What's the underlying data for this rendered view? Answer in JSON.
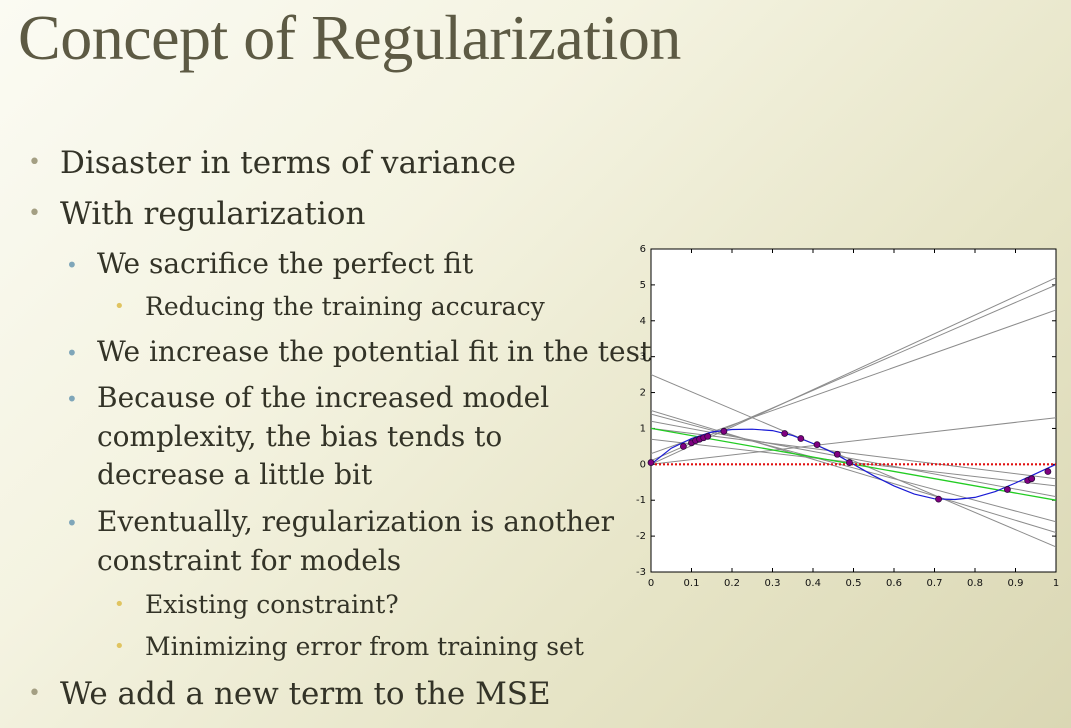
{
  "slide": {
    "title": "Concept of Regularization",
    "bullets": [
      {
        "level": 1,
        "text": "Disaster in terms of variance"
      },
      {
        "level": 1,
        "text": "With regularization"
      },
      {
        "level": 2,
        "text": "We sacrifice the perfect fit"
      },
      {
        "level": 3,
        "text": "Reducing the training accuracy"
      },
      {
        "level": 2,
        "text": "We increase the potential fit in the test"
      },
      {
        "level": 2,
        "lines": [
          "Because of the increased model",
          "complexity, the bias tends to",
          "decrease a little bit"
        ]
      },
      {
        "level": 2,
        "lines": [
          "Eventually, regularization is another",
          "constraint for models"
        ]
      },
      {
        "level": 3,
        "text": "Existing constraint?"
      },
      {
        "level": 3,
        "text": "Minimizing error from training set"
      },
      {
        "level": 1,
        "text": "We add a new term to the MSE"
      }
    ]
  },
  "chart_data": {
    "type": "line",
    "xlim": [
      0,
      1
    ],
    "ylim": [
      -3,
      6
    ],
    "x_ticks": [
      "0",
      "0.1",
      "0.2",
      "0.3",
      "0.4",
      "0.5",
      "0.6",
      "0.7",
      "0.8",
      "0.9",
      "1"
    ],
    "y_ticks": [
      "6",
      "5",
      "4",
      "3",
      "2",
      "1",
      "0",
      "-1",
      "-2",
      "-3"
    ],
    "grid": false,
    "colors": {
      "fits": "#8c8c8c",
      "true_curve": "#1a1ad6",
      "regularized": "#22cc22",
      "zero_line": "#e01010",
      "points": "#800080"
    },
    "series": [
      {
        "kind": "fit",
        "x": [
          0,
          1
        ],
        "y": [
          0.0,
          5.2
        ]
      },
      {
        "kind": "fit",
        "x": [
          0,
          1
        ],
        "y": [
          0.1,
          5.0
        ]
      },
      {
        "kind": "fit",
        "x": [
          0,
          1
        ],
        "y": [
          0.3,
          4.3
        ]
      },
      {
        "kind": "fit",
        "x": [
          0,
          1
        ],
        "y": [
          0.0,
          1.3
        ]
      },
      {
        "kind": "fit",
        "x": [
          0,
          1
        ],
        "y": [
          2.5,
          -2.3
        ]
      },
      {
        "kind": "fit",
        "x": [
          0,
          1
        ],
        "y": [
          1.5,
          -1.9
        ]
      },
      {
        "kind": "fit",
        "x": [
          0,
          1
        ],
        "y": [
          1.4,
          -1.6
        ]
      },
      {
        "kind": "fit",
        "x": [
          0,
          1
        ],
        "y": [
          1.2,
          -0.9
        ]
      },
      {
        "kind": "fit",
        "x": [
          0,
          1
        ],
        "y": [
          1.0,
          -0.4
        ]
      },
      {
        "kind": "fit",
        "x": [
          0,
          1
        ],
        "y": [
          0.7,
          -0.6
        ]
      },
      {
        "kind": "regularized",
        "x": [
          0,
          1
        ],
        "y": [
          1.0,
          -1.0
        ]
      },
      {
        "kind": "zero",
        "x": [
          0,
          1
        ],
        "y": [
          0,
          0
        ]
      },
      {
        "kind": "curve",
        "x": [
          0,
          0.05,
          0.1,
          0.15,
          0.2,
          0.25,
          0.3,
          0.35,
          0.4,
          0.45,
          0.5,
          0.55,
          0.6,
          0.65,
          0.7,
          0.75,
          0.8,
          0.85,
          0.9,
          0.95,
          1.0
        ],
        "y": [
          0,
          0.45,
          0.72,
          0.9,
          0.97,
          0.98,
          0.94,
          0.8,
          0.58,
          0.32,
          0.0,
          -0.32,
          -0.6,
          -0.83,
          -0.96,
          -0.98,
          -0.92,
          -0.76,
          -0.52,
          -0.26,
          0.0
        ]
      }
    ],
    "points": {
      "x": [
        0.0,
        0.08,
        0.1,
        0.11,
        0.12,
        0.13,
        0.14,
        0.18,
        0.33,
        0.37,
        0.41,
        0.46,
        0.49,
        0.71,
        0.88,
        0.93,
        0.94,
        0.98
      ],
      "y": [
        0.05,
        0.5,
        0.6,
        0.66,
        0.7,
        0.74,
        0.78,
        0.92,
        0.86,
        0.72,
        0.55,
        0.28,
        0.05,
        -0.97,
        -0.7,
        -0.45,
        -0.4,
        -0.2
      ]
    }
  }
}
